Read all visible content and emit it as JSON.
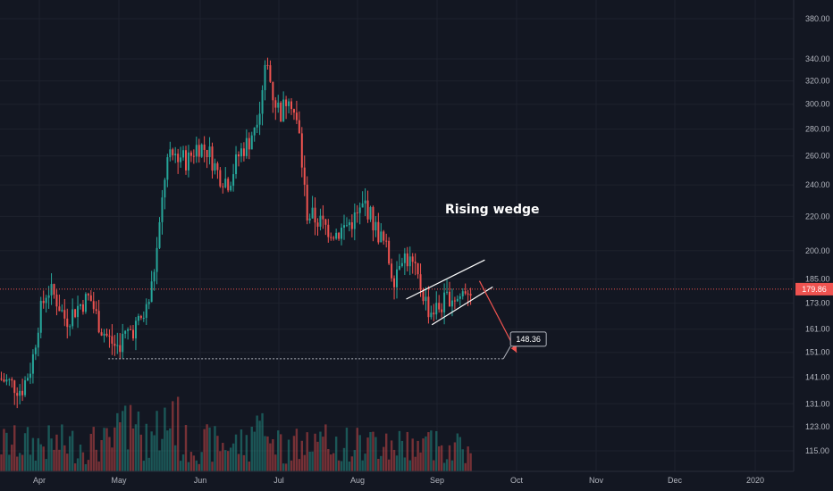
{
  "chart_data": {
    "type": "candlestick",
    "y_scale": "log",
    "ylim": [
      110,
      400
    ],
    "x_tick_labels": [
      "Apr",
      "May",
      "Jun",
      "Jul",
      "Aug",
      "Sep",
      "Oct",
      "Nov",
      "Dec",
      "2020"
    ],
    "y_tick_labels": [
      "380.00",
      "340.00",
      "320.00",
      "300.00",
      "280.00",
      "260.00",
      "240.00",
      "220.00",
      "200.00",
      "185.00",
      "173.00",
      "161.00",
      "151.00",
      "141.00",
      "131.00",
      "123.00",
      "115.00"
    ],
    "y_tick_values": [
      380,
      340,
      320,
      300,
      280,
      260,
      240,
      220,
      200,
      185,
      173,
      161,
      151,
      141,
      131,
      123,
      115
    ],
    "current_price": "179.86",
    "current_price_value": 179.86,
    "support_level_value": 148.36,
    "target_label": "148.36",
    "annotation_text": "Rising wedge",
    "colors": {
      "background": "#131722",
      "up": "#26a69a",
      "down": "#ef5350",
      "text": "#b2b5be",
      "annotation": "#ffffff",
      "price_line": "#ef5350"
    },
    "price_path": [
      [
        "Mar 15",
        141
      ],
      [
        "Mar 20",
        139
      ],
      [
        "Mar 25",
        136
      ],
      [
        "Mar 29",
        146
      ],
      [
        "Apr 1",
        167
      ],
      [
        "Apr 4",
        180
      ],
      [
        "Apr 7",
        176
      ],
      [
        "Apr 11",
        165
      ],
      [
        "Apr 16",
        172
      ],
      [
        "Apr 20",
        176
      ],
      [
        "Apr 24",
        162
      ],
      [
        "Apr 27",
        157
      ],
      [
        "Apr 30",
        153
      ],
      [
        "May 4",
        159
      ],
      [
        "May 8",
        163
      ],
      [
        "May 11",
        168
      ],
      [
        "May 13",
        177
      ],
      [
        "May 16",
        205
      ],
      [
        "May 19",
        255
      ],
      [
        "May 23",
        262
      ],
      [
        "May 27",
        256
      ],
      [
        "May 31",
        268
      ],
      [
        "Jun 4",
        264
      ],
      [
        "Jun 8",
        247
      ],
      [
        "Jun 12",
        242
      ],
      [
        "Jun 16",
        262
      ],
      [
        "Jun 20",
        272
      ],
      [
        "Jun 24",
        302
      ],
      [
        "Jun 26",
        342
      ],
      [
        "Jun 29",
        305
      ],
      [
        "Jul 2",
        292
      ],
      [
        "Jul 5",
        312
      ],
      [
        "Jul 9",
        275
      ],
      [
        "Jul 12",
        222
      ],
      [
        "Jul 16",
        218
      ],
      [
        "Jul 20",
        213
      ],
      [
        "Jul 24",
        210
      ],
      [
        "Jul 28",
        215
      ],
      [
        "Aug 1",
        220
      ],
      [
        "Aug 4",
        228
      ],
      [
        "Aug 8",
        213
      ],
      [
        "Aug 12",
        202
      ],
      [
        "Aug 15",
        185
      ],
      [
        "Aug 18",
        199
      ],
      [
        "Aug 22",
        193
      ],
      [
        "Aug 26",
        180
      ],
      [
        "Aug 29",
        169
      ],
      [
        "Sep 2",
        171
      ],
      [
        "Sep 6",
        177
      ],
      [
        "Sep 9",
        175
      ],
      [
        "Sep 12",
        181
      ],
      [
        "Sep 14",
        180
      ]
    ]
  }
}
